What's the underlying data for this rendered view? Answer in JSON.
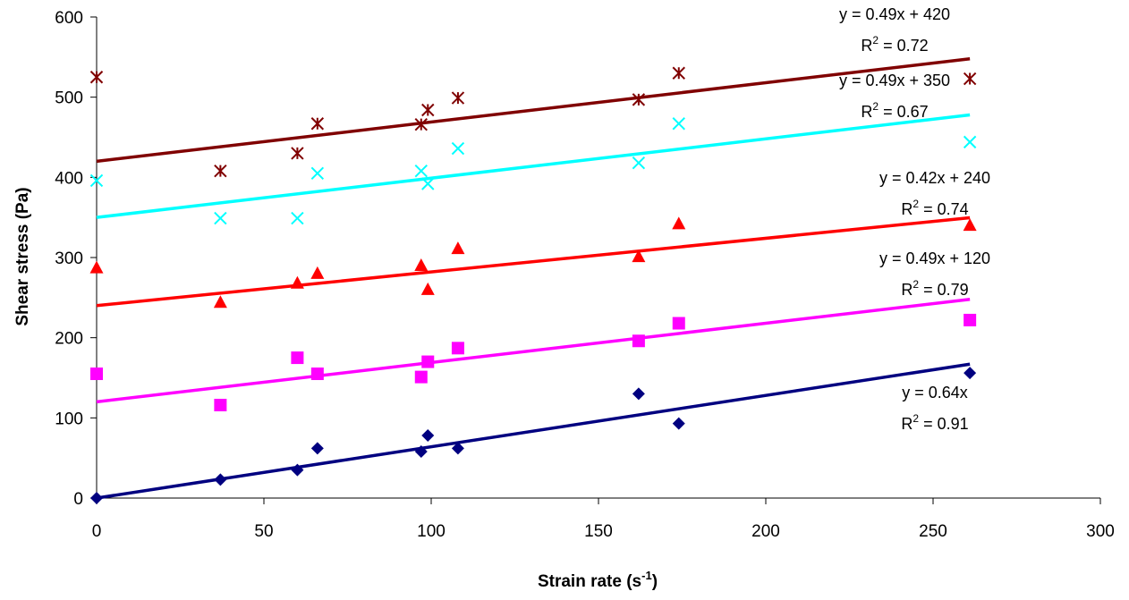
{
  "chart_data": {
    "type": "scatter",
    "title": "",
    "xlabel": "Strain rate (s",
    "xlabel_sup": "-1",
    "xlabel_close": ")",
    "ylabel": "Shear stress (Pa)",
    "xlim": [
      0,
      300
    ],
    "ylim": [
      0,
      600
    ],
    "x_ticks": [
      0,
      50,
      100,
      150,
      200,
      250,
      300
    ],
    "y_ticks": [
      0,
      100,
      200,
      300,
      400,
      500,
      600
    ],
    "grid": false,
    "legend": "none",
    "series": [
      {
        "marker": "diamond",
        "color": "#000080",
        "x": [
          0,
          37,
          60,
          66,
          97,
          99,
          108,
          162,
          174,
          261
        ],
        "y": [
          0,
          23,
          35,
          62,
          58,
          78,
          62,
          130,
          93,
          156
        ],
        "trend": {
          "slope": 0.64,
          "intercept": 0,
          "x_range": [
            0,
            261
          ]
        },
        "equation": "y = 0.64x",
        "r2_label": "R",
        "r2_sup": "2",
        "r2_value": " = 0.91"
      },
      {
        "marker": "square",
        "color": "#FF00FF",
        "x": [
          0,
          37,
          60,
          66,
          97,
          99,
          108,
          162,
          174,
          261
        ],
        "y": [
          155,
          116,
          175,
          155,
          151,
          170,
          187,
          196,
          218,
          222
        ],
        "trend": {
          "slope": 0.49,
          "intercept": 120,
          "x_range": [
            0,
            261
          ]
        },
        "equation": "y = 0.49x + 120",
        "r2_label": "R",
        "r2_sup": "2",
        "r2_value": " = 0.79"
      },
      {
        "marker": "triangle",
        "color": "#FF0000",
        "x": [
          0,
          37,
          60,
          66,
          97,
          99,
          108,
          162,
          174,
          261
        ],
        "y": [
          287,
          244,
          268,
          280,
          290,
          260,
          311,
          301,
          342,
          340
        ],
        "trend": {
          "slope": 0.42,
          "intercept": 240,
          "x_range": [
            0,
            261
          ]
        },
        "equation": "y = 0.42x + 240",
        "r2_label": "R",
        "r2_sup": "2",
        "r2_value": " = 0.74"
      },
      {
        "marker": "x",
        "color": "#00FFFF",
        "x": [
          0,
          37,
          60,
          66,
          97,
          99,
          108,
          162,
          174,
          261
        ],
        "y": [
          396,
          349,
          349,
          405,
          408,
          392,
          436,
          418,
          467,
          444
        ],
        "trend": {
          "slope": 0.49,
          "intercept": 350,
          "x_range": [
            0,
            261
          ]
        },
        "equation": "y = 0.49x + 350",
        "r2_label": "R",
        "r2_sup": "2",
        "r2_value": " = 0.67"
      },
      {
        "marker": "asterisk",
        "color": "#800000",
        "x": [
          0,
          37,
          60,
          66,
          97,
          99,
          108,
          162,
          174,
          261
        ],
        "y": [
          525,
          408,
          430,
          467,
          466,
          484,
          499,
          497,
          530,
          523
        ],
        "trend": {
          "slope": 0.49,
          "intercept": 420,
          "x_range": [
            0,
            261
          ]
        },
        "equation": "y = 0.49x + 420",
        "r2_label": "R",
        "r2_sup": "2",
        "r2_value": " = 0.72"
      }
    ]
  }
}
